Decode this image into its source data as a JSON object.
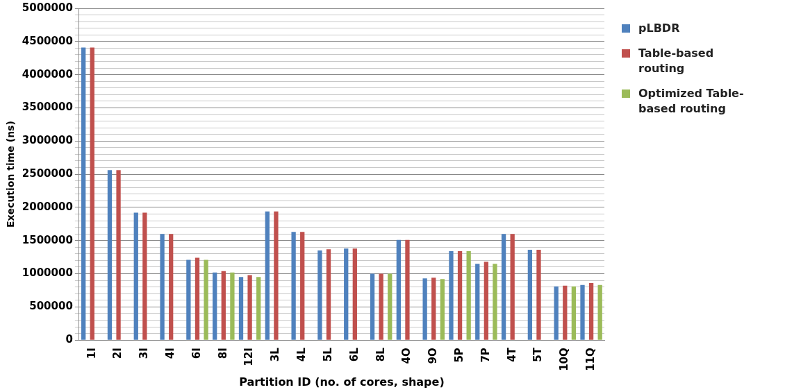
{
  "chart_data": {
    "type": "bar",
    "xlabel": "Partition ID (no. of cores, shape)",
    "ylabel": "Execution time (ns)",
    "categories": [
      "1I",
      "2I",
      "3I",
      "4I",
      "6I",
      "8I",
      "12I",
      "3L",
      "4L",
      "5L",
      "6L",
      "8L",
      "4O",
      "9O",
      "5P",
      "7P",
      "4T",
      "5T",
      "10Q",
      "11Q"
    ],
    "series": [
      {
        "name": "pLBDR",
        "color": "#4f81bd",
        "values": [
          4410000,
          2560000,
          1920000,
          1600000,
          1210000,
          1020000,
          950000,
          1940000,
          1630000,
          1350000,
          1380000,
          1000000,
          1510000,
          930000,
          1340000,
          1150000,
          1600000,
          1360000,
          810000,
          830000
        ]
      },
      {
        "name": "Table-based routing",
        "color": "#c0504d",
        "values": [
          4410000,
          2560000,
          1920000,
          1600000,
          1240000,
          1040000,
          980000,
          1940000,
          1630000,
          1370000,
          1380000,
          1000000,
          1510000,
          940000,
          1340000,
          1180000,
          1600000,
          1360000,
          820000,
          860000
        ]
      },
      {
        "name": "Optimized Table-based routing",
        "color": "#9bbb59",
        "values": [
          null,
          null,
          null,
          null,
          1210000,
          1020000,
          950000,
          null,
          null,
          null,
          null,
          1000000,
          null,
          920000,
          1340000,
          1150000,
          null,
          null,
          810000,
          830000
        ]
      }
    ],
    "ylim": [
      0,
      5000000
    ],
    "yticks": [
      0,
      {
        "value": 100000,
        "label": null
      },
      {
        "value": 200000,
        "label": null
      },
      {
        "value": 300000,
        "label": null
      },
      {
        "value": 400000,
        "label": null
      },
      500000,
      {
        "value": 600000,
        "label": null
      },
      {
        "value": 700000,
        "label": null
      },
      {
        "value": 800000,
        "label": null
      },
      {
        "value": 900000,
        "label": null
      },
      1000000,
      {
        "value": 1100000,
        "label": null
      },
      {
        "value": 1200000,
        "label": null
      },
      {
        "value": 1300000,
        "label": null
      },
      {
        "value": 1400000,
        "label": null
      },
      1500000,
      {
        "value": 1600000,
        "label": null
      },
      {
        "value": 1700000,
        "label": null
      },
      {
        "value": 1800000,
        "label": null
      },
      {
        "value": 1900000,
        "label": null
      },
      2000000,
      {
        "value": 2100000,
        "label": null
      },
      {
        "value": 2200000,
        "label": null
      },
      {
        "value": 2300000,
        "label": null
      },
      {
        "value": 2400000,
        "label": null
      },
      2500000,
      {
        "value": 2600000,
        "label": null
      },
      {
        "value": 2700000,
        "label": null
      },
      {
        "value": 2800000,
        "label": null
      },
      {
        "value": 2900000,
        "label": null
      },
      3000000,
      {
        "value": 3100000,
        "label": null
      },
      {
        "value": 3200000,
        "label": null
      },
      {
        "value": 3300000,
        "label": null
      },
      {
        "value": 3400000,
        "label": null
      },
      3500000,
      {
        "value": 3600000,
        "label": null
      },
      {
        "value": 3700000,
        "label": null
      },
      {
        "value": 3800000,
        "label": null
      },
      {
        "value": 3900000,
        "label": null
      },
      4000000,
      {
        "value": 4100000,
        "label": null
      },
      {
        "value": 4200000,
        "label": null
      },
      {
        "value": 4300000,
        "label": null
      },
      {
        "value": 4400000,
        "label": null
      },
      4500000,
      {
        "value": 4600000,
        "label": null
      },
      {
        "value": 4700000,
        "label": null
      },
      {
        "value": 4800000,
        "label": null
      },
      {
        "value": 4900000,
        "label": null
      },
      5000000
    ],
    "grid": "y",
    "legend": "right"
  }
}
